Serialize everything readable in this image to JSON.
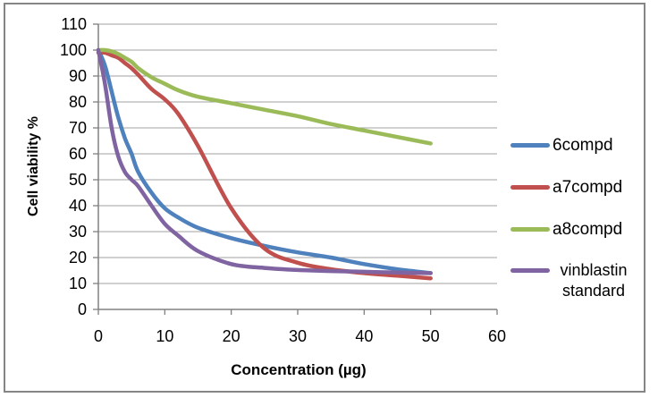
{
  "chart_data": {
    "type": "line",
    "title": "",
    "xlabel": "Concentration (µg)",
    "ylabel": "Cell viability %",
    "xlim": [
      0,
      60
    ],
    "ylim": [
      0,
      110
    ],
    "xticks": [
      0,
      10,
      20,
      30,
      40,
      50,
      60
    ],
    "yticks": [
      0,
      10,
      20,
      30,
      40,
      50,
      60,
      70,
      80,
      90,
      100,
      110
    ],
    "grid": "horizontal",
    "legend_position": "right",
    "line_style": "smooth",
    "x": [
      0,
      1,
      2,
      3,
      4,
      5,
      6,
      8,
      10,
      12,
      15,
      20,
      25,
      30,
      35,
      40,
      45,
      50
    ],
    "series": [
      {
        "name": "6compd",
        "color": "#4F81BD",
        "values": [
          100,
          94,
          84,
          74,
          66,
          60,
          53,
          45,
          39,
          35.5,
          31.5,
          27.5,
          24.5,
          22,
          20,
          17.5,
          15.5,
          14
        ]
      },
      {
        "name": "a7compd",
        "color": "#C0504D",
        "values": [
          99,
          99,
          98,
          97,
          95,
          93,
          90.5,
          85,
          81,
          75.5,
          63,
          39,
          23.5,
          18,
          15.5,
          14,
          13,
          12
        ]
      },
      {
        "name": "a8compd",
        "color": "#9BBB59",
        "values": [
          100,
          100,
          99.5,
          98.5,
          97,
          95.5,
          93,
          89.5,
          87,
          84.5,
          82,
          79.5,
          77,
          74.5,
          71.5,
          69,
          66.5,
          64
        ]
      },
      {
        "name": "vinblastin standard",
        "color": "#8064A2",
        "values": [
          100,
          87,
          70,
          59,
          53,
          50,
          47.5,
          40,
          33,
          28.5,
          22.5,
          17.5,
          16,
          15.2,
          14.8,
          14.5,
          14.2,
          14
        ]
      }
    ],
    "colors": {
      "gridline": "#A0A0A0",
      "axis": "#808080",
      "text": "#000000",
      "frame_border": "#858585",
      "background": "#FFFFFF"
    }
  }
}
